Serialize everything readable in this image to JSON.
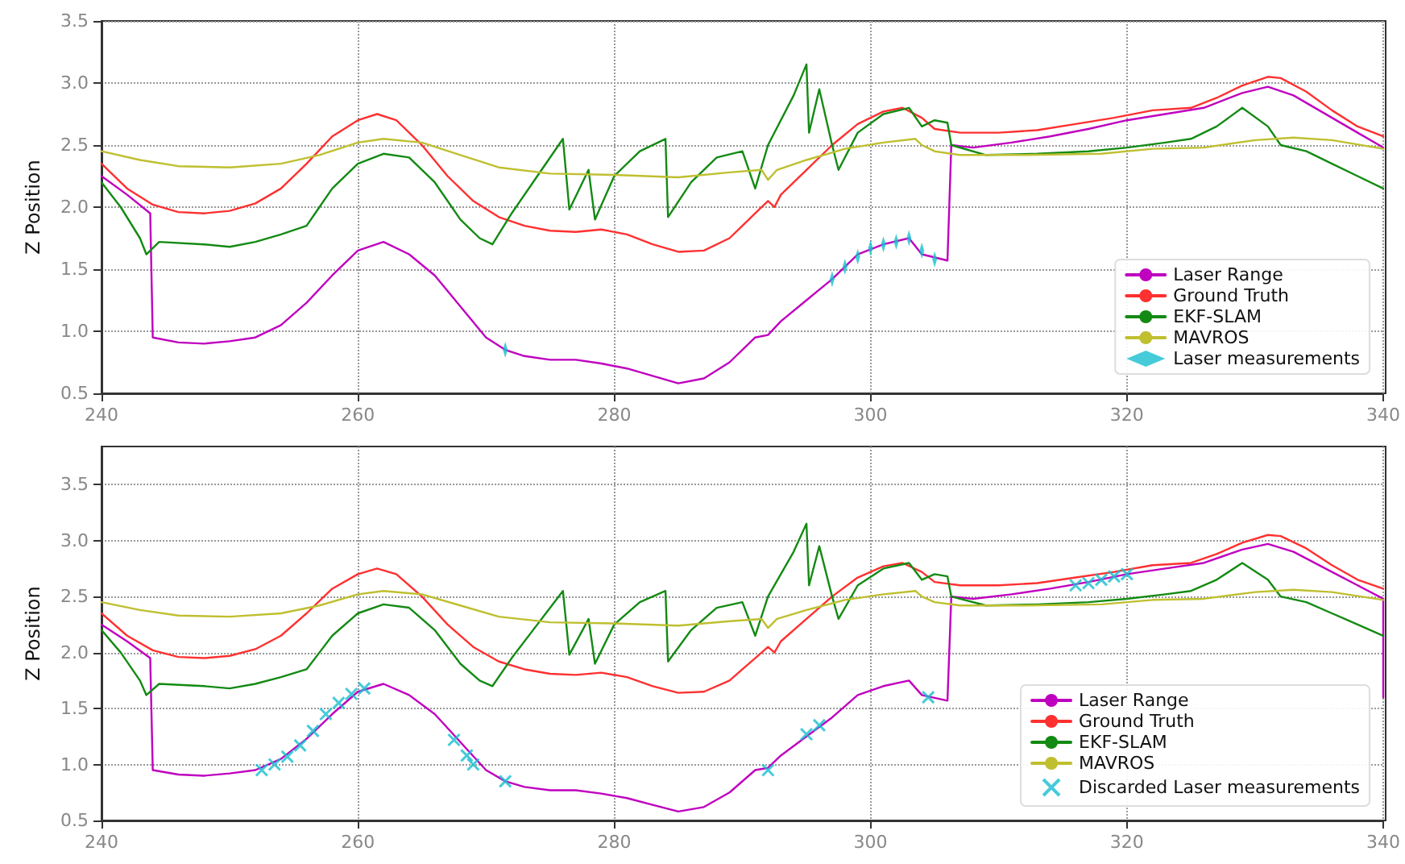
{
  "chart_data": [
    {
      "type": "line",
      "ylabel": "Z Position",
      "xlim": [
        240,
        340
      ],
      "xticks": [
        240,
        260,
        280,
        300,
        320,
        340
      ],
      "ylim": [
        0.5,
        3.5
      ],
      "yticks": [
        0.5,
        {
          "value": 1,
          "label": "1.0"
        },
        1.5,
        {
          "value": 2,
          "label": "2.0"
        },
        2.5,
        {
          "value": 3,
          "label": "3.0"
        },
        3.5
      ],
      "grid": true,
      "legend": "bottom right",
      "series": [
        {
          "name": "Laser Range",
          "color": "#bf00bf",
          "x": [
            240,
            242,
            243.8,
            244,
            246,
            248,
            250,
            252,
            254,
            256,
            258,
            260,
            262,
            264,
            266,
            268,
            270,
            271.5,
            273,
            275,
            277,
            279,
            281,
            283,
            285,
            287,
            289,
            291,
            292,
            293,
            295,
            297,
            299,
            301,
            303,
            304,
            306,
            306.3,
            308,
            311,
            314,
            317,
            320,
            323,
            326,
            329,
            331,
            333,
            336,
            338,
            340
          ],
          "values": [
            2.25,
            2.1,
            1.95,
            0.95,
            0.91,
            0.9,
            0.92,
            0.95,
            1.05,
            1.23,
            1.45,
            1.65,
            1.72,
            1.62,
            1.45,
            1.2,
            0.95,
            0.85,
            0.8,
            0.77,
            0.77,
            0.74,
            0.7,
            0.64,
            0.58,
            0.62,
            0.75,
            0.95,
            0.97,
            1.08,
            1.25,
            1.42,
            1.62,
            1.7,
            1.75,
            1.62,
            1.57,
            2.5,
            2.48,
            2.52,
            2.57,
            2.63,
            2.7,
            2.75,
            2.8,
            2.92,
            2.97,
            2.9,
            2.72,
            2.6,
            2.48
          ]
        },
        {
          "name": "Ground Truth",
          "color": "#ff3030",
          "x": [
            240,
            242,
            244,
            246,
            248,
            250,
            252,
            254,
            256,
            258,
            260,
            261.5,
            263,
            265,
            267,
            269,
            271,
            273,
            275,
            277,
            279,
            281,
            283,
            285,
            287,
            289,
            290,
            291,
            292,
            292.5,
            293,
            295,
            297,
            299,
            301,
            302.5,
            304,
            305,
            307,
            310,
            313,
            316,
            319,
            322,
            325,
            327,
            329,
            331,
            332,
            334,
            336,
            338,
            340
          ],
          "values": [
            2.35,
            2.15,
            2.02,
            1.96,
            1.95,
            1.97,
            2.03,
            2.15,
            2.35,
            2.57,
            2.7,
            2.75,
            2.7,
            2.5,
            2.25,
            2.05,
            1.92,
            1.85,
            1.81,
            1.8,
            1.82,
            1.78,
            1.7,
            1.64,
            1.65,
            1.75,
            1.85,
            1.95,
            2.05,
            2.0,
            2.1,
            2.3,
            2.5,
            2.67,
            2.77,
            2.8,
            2.72,
            2.63,
            2.6,
            2.6,
            2.62,
            2.67,
            2.72,
            2.78,
            2.8,
            2.88,
            2.98,
            3.05,
            3.04,
            2.93,
            2.78,
            2.65,
            2.57
          ]
        },
        {
          "name": "EKF-SLAM",
          "color": "#138a13",
          "x": [
            240,
            241.5,
            243,
            243.5,
            244.5,
            248,
            250,
            252,
            254,
            256,
            257,
            258,
            260,
            262,
            264,
            266,
            268,
            269.5,
            270.5,
            272,
            274,
            276,
            276.5,
            278,
            278.5,
            280,
            282,
            284,
            284.2,
            286,
            288,
            290,
            291,
            292,
            294,
            295,
            295.2,
            296,
            297,
            297.5,
            299,
            301,
            303,
            304,
            305,
            306,
            306.3,
            309,
            313,
            317,
            320,
            323,
            325,
            327,
            329,
            331,
            332,
            334,
            336,
            338,
            340
          ],
          "values": [
            2.2,
            2.0,
            1.75,
            1.62,
            1.72,
            1.7,
            1.68,
            1.72,
            1.78,
            1.85,
            2.0,
            2.15,
            2.35,
            2.43,
            2.4,
            2.2,
            1.9,
            1.75,
            1.7,
            1.95,
            2.25,
            2.55,
            1.98,
            2.3,
            1.9,
            2.25,
            2.45,
            2.55,
            1.92,
            2.2,
            2.4,
            2.45,
            2.15,
            2.5,
            2.9,
            3.15,
            2.6,
            2.95,
            2.5,
            2.3,
            2.6,
            2.75,
            2.8,
            2.65,
            2.7,
            2.68,
            2.5,
            2.42,
            2.43,
            2.45,
            2.48,
            2.52,
            2.55,
            2.65,
            2.8,
            2.65,
            2.5,
            2.45,
            2.35,
            2.25,
            2.15
          ]
        },
        {
          "name": "MAVROS",
          "color": "#bfbf30",
          "x": [
            240,
            243,
            246,
            250,
            254,
            257,
            260,
            262,
            265,
            268,
            271,
            275,
            280,
            285,
            289,
            291.5,
            292,
            292.7,
            295,
            298,
            301,
            303.5,
            304,
            305,
            307,
            312,
            318,
            322,
            326,
            330,
            333,
            336,
            340
          ],
          "values": [
            2.45,
            2.38,
            2.33,
            2.32,
            2.35,
            2.42,
            2.52,
            2.55,
            2.52,
            2.42,
            2.32,
            2.27,
            2.26,
            2.24,
            2.28,
            2.3,
            2.22,
            2.3,
            2.38,
            2.47,
            2.52,
            2.55,
            2.5,
            2.45,
            2.42,
            2.42,
            2.43,
            2.47,
            2.48,
            2.54,
            2.56,
            2.54,
            2.47
          ]
        },
        {
          "name": "Laser measurements",
          "type": "scatter",
          "marker": "diamond",
          "color": "#17becf",
          "x": [
            271.5,
            297,
            298,
            299,
            300,
            301,
            302,
            303,
            304,
            305
          ],
          "values": [
            0.85,
            1.42,
            1.52,
            1.6,
            1.67,
            1.7,
            1.72,
            1.75,
            1.65,
            1.58
          ]
        }
      ]
    },
    {
      "type": "line",
      "ylabel": "Z Position",
      "xlim": [
        240,
        340
      ],
      "xticks": [
        240,
        260,
        280,
        300,
        320,
        340
      ],
      "ylim": [
        0.5,
        3.84
      ],
      "yticks": [
        0.5,
        {
          "value": 1,
          "label": "1.0"
        },
        1.5,
        {
          "value": 2,
          "label": "2.0"
        },
        2.5,
        {
          "value": 3,
          "label": "3.0"
        },
        3.5
      ],
      "grid": true,
      "legend": "bottom right",
      "series": [
        {
          "name": "Laser Range",
          "color": "#bf00bf",
          "x": [
            240,
            242,
            243.8,
            244,
            246,
            248,
            250,
            252,
            254,
            256,
            258,
            260,
            262,
            264,
            266,
            268,
            270,
            271.5,
            273,
            275,
            277,
            279,
            281,
            283,
            285,
            287,
            289,
            291,
            292,
            293,
            295,
            297,
            299,
            301,
            303,
            304,
            306,
            306.3,
            308,
            311,
            314,
            317,
            320,
            323,
            326,
            329,
            331,
            333,
            336,
            338,
            340,
            340
          ],
          "values": [
            2.25,
            2.1,
            1.95,
            0.95,
            0.91,
            0.9,
            0.92,
            0.95,
            1.05,
            1.23,
            1.45,
            1.65,
            1.72,
            1.62,
            1.45,
            1.2,
            0.95,
            0.85,
            0.8,
            0.77,
            0.77,
            0.74,
            0.7,
            0.64,
            0.58,
            0.62,
            0.75,
            0.95,
            0.97,
            1.08,
            1.25,
            1.42,
            1.62,
            1.7,
            1.75,
            1.62,
            1.57,
            2.5,
            2.48,
            2.52,
            2.57,
            2.63,
            2.7,
            2.75,
            2.8,
            2.92,
            2.97,
            2.9,
            2.72,
            2.6,
            2.48,
            1.6
          ]
        },
        {
          "name": "Ground Truth",
          "color": "#ff3030",
          "x": [
            240,
            242,
            244,
            246,
            248,
            250,
            252,
            254,
            256,
            258,
            260,
            261.5,
            263,
            265,
            267,
            269,
            271,
            273,
            275,
            277,
            279,
            281,
            283,
            285,
            287,
            289,
            290,
            291,
            292,
            292.5,
            293,
            295,
            297,
            299,
            301,
            302.5,
            304,
            305,
            307,
            310,
            313,
            316,
            319,
            322,
            325,
            327,
            329,
            331,
            332,
            334,
            336,
            338,
            340
          ],
          "values": [
            2.35,
            2.15,
            2.02,
            1.96,
            1.95,
            1.97,
            2.03,
            2.15,
            2.35,
            2.57,
            2.7,
            2.75,
            2.7,
            2.5,
            2.25,
            2.05,
            1.92,
            1.85,
            1.81,
            1.8,
            1.82,
            1.78,
            1.7,
            1.64,
            1.65,
            1.75,
            1.85,
            1.95,
            2.05,
            2.0,
            2.1,
            2.3,
            2.5,
            2.67,
            2.77,
            2.8,
            2.72,
            2.63,
            2.6,
            2.6,
            2.62,
            2.67,
            2.72,
            2.78,
            2.8,
            2.88,
            2.98,
            3.05,
            3.04,
            2.93,
            2.78,
            2.65,
            2.57
          ]
        },
        {
          "name": "EKF-SLAM",
          "color": "#138a13",
          "x": [
            240,
            241.5,
            243,
            243.5,
            244.5,
            248,
            250,
            252,
            254,
            256,
            257,
            258,
            260,
            262,
            264,
            266,
            268,
            269.5,
            270.5,
            272,
            274,
            276,
            276.5,
            278,
            278.5,
            280,
            282,
            284,
            284.2,
            286,
            288,
            290,
            291,
            292,
            294,
            295,
            295.2,
            296,
            297,
            297.5,
            299,
            301,
            303,
            304,
            305,
            306,
            306.3,
            309,
            313,
            317,
            320,
            323,
            325,
            327,
            329,
            331,
            332,
            334,
            336,
            338,
            340
          ],
          "values": [
            2.2,
            2.0,
            1.75,
            1.62,
            1.72,
            1.7,
            1.68,
            1.72,
            1.78,
            1.85,
            2.0,
            2.15,
            2.35,
            2.43,
            2.4,
            2.2,
            1.9,
            1.75,
            1.7,
            1.95,
            2.25,
            2.55,
            1.98,
            2.3,
            1.9,
            2.25,
            2.45,
            2.55,
            1.92,
            2.2,
            2.4,
            2.45,
            2.15,
            2.5,
            2.9,
            3.15,
            2.6,
            2.95,
            2.5,
            2.3,
            2.6,
            2.75,
            2.8,
            2.65,
            2.7,
            2.68,
            2.5,
            2.42,
            2.43,
            2.45,
            2.48,
            2.52,
            2.55,
            2.65,
            2.8,
            2.65,
            2.5,
            2.45,
            2.35,
            2.25,
            2.15
          ]
        },
        {
          "name": "MAVROS",
          "color": "#bfbf30",
          "x": [
            240,
            243,
            246,
            250,
            254,
            257,
            260,
            262,
            265,
            268,
            271,
            275,
            280,
            285,
            289,
            291.5,
            292,
            292.7,
            295,
            298,
            301,
            303.5,
            304,
            305,
            307,
            312,
            318,
            322,
            326,
            330,
            333,
            336,
            340
          ],
          "values": [
            2.45,
            2.38,
            2.33,
            2.32,
            2.35,
            2.42,
            2.52,
            2.55,
            2.52,
            2.42,
            2.32,
            2.27,
            2.26,
            2.24,
            2.28,
            2.3,
            2.22,
            2.3,
            2.38,
            2.47,
            2.52,
            2.55,
            2.5,
            2.45,
            2.42,
            2.42,
            2.43,
            2.47,
            2.48,
            2.54,
            2.56,
            2.54,
            2.47
          ]
        },
        {
          "name": "Discarded Laser measurements",
          "type": "scatter",
          "marker": "cross",
          "color": "#17becf",
          "x": [
            252.5,
            253.5,
            254.5,
            255.5,
            256.5,
            257.5,
            258.5,
            259.5,
            260.5,
            267.5,
            268.5,
            269,
            271.5,
            292,
            295,
            296,
            304.5,
            316,
            317,
            318,
            319,
            320
          ],
          "values": [
            0.95,
            1.0,
            1.07,
            1.17,
            1.3,
            1.45,
            1.55,
            1.63,
            1.68,
            1.22,
            1.08,
            1.0,
            0.85,
            0.95,
            1.27,
            1.35,
            1.6,
            2.6,
            2.62,
            2.65,
            2.68,
            2.7
          ]
        }
      ]
    }
  ]
}
